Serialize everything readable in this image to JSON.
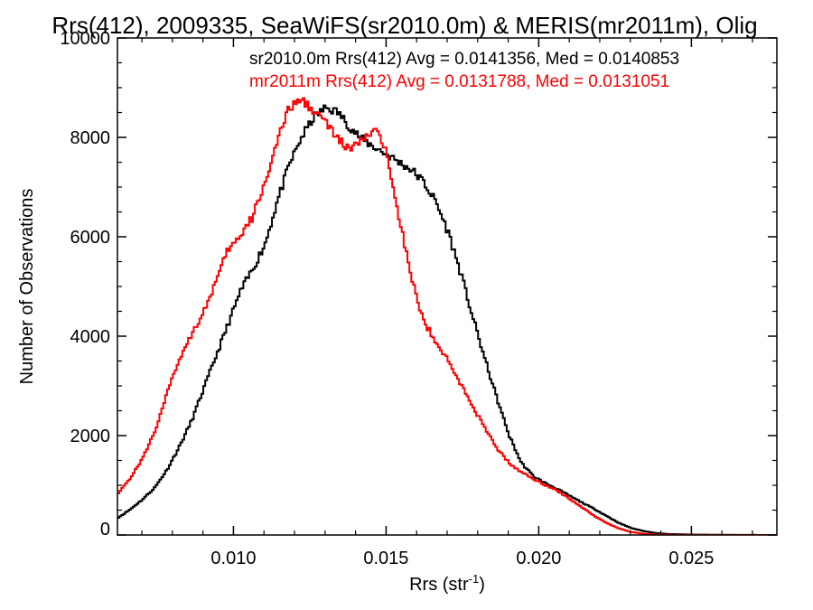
{
  "chart_data": {
    "type": "line",
    "title": "Rrs(412), 2009335, SeaWiFS(sr2010.0m) & MERIS(mr2011m), Olig",
    "xlabel": "Rrs (str",
    "xlabel_sup": "-1",
    "xlabel_close": ")",
    "ylabel": "Number of Observations",
    "xlim": [
      0.0062,
      0.0278
    ],
    "ylim": [
      0,
      10000
    ],
    "xticks": [
      0.01,
      0.015,
      0.02,
      0.025
    ],
    "xtick_labels": [
      "0.010",
      "0.015",
      "0.020",
      "0.025"
    ],
    "yticks": [
      0,
      2000,
      4000,
      6000,
      8000,
      10000
    ],
    "ytick_labels": [
      "0",
      "2000",
      "4000",
      "6000",
      "8000",
      "10000"
    ],
    "grid": false,
    "step": true,
    "series": [
      {
        "name": "sr2010.0m Rrs(412) Avg = 0.0141356, Med = 0.0140853",
        "color": "#000000",
        "points": [
          [
            0.0062,
            350
          ],
          [
            0.0066,
            520
          ],
          [
            0.007,
            720
          ],
          [
            0.0074,
            960
          ],
          [
            0.0078,
            1320
          ],
          [
            0.0082,
            1780
          ],
          [
            0.0086,
            2300
          ],
          [
            0.009,
            2950
          ],
          [
            0.0094,
            3600
          ],
          [
            0.0098,
            4250
          ],
          [
            0.0102,
            4900
          ],
          [
            0.0106,
            5350
          ],
          [
            0.011,
            5850
          ],
          [
            0.0114,
            6700
          ],
          [
            0.0118,
            7450
          ],
          [
            0.0122,
            8000
          ],
          [
            0.0126,
            8400
          ],
          [
            0.013,
            8600
          ],
          [
            0.0134,
            8500
          ],
          [
            0.0138,
            8200
          ],
          [
            0.0142,
            7950
          ],
          [
            0.0146,
            7800
          ],
          [
            0.015,
            7650
          ],
          [
            0.0154,
            7500
          ],
          [
            0.0158,
            7350
          ],
          [
            0.0162,
            7100
          ],
          [
            0.0166,
            6700
          ],
          [
            0.017,
            6100
          ],
          [
            0.0174,
            5300
          ],
          [
            0.0178,
            4400
          ],
          [
            0.0182,
            3550
          ],
          [
            0.0186,
            2750
          ],
          [
            0.019,
            2000
          ],
          [
            0.0194,
            1450
          ],
          [
            0.0198,
            1180
          ],
          [
            0.0202,
            1040
          ],
          [
            0.0206,
            920
          ],
          [
            0.021,
            780
          ],
          [
            0.0214,
            650
          ],
          [
            0.0218,
            520
          ],
          [
            0.0222,
            380
          ],
          [
            0.0226,
            240
          ],
          [
            0.023,
            140
          ],
          [
            0.0234,
            80
          ],
          [
            0.0238,
            40
          ],
          [
            0.0242,
            20
          ],
          [
            0.025,
            8
          ],
          [
            0.026,
            3
          ],
          [
            0.0278,
            0
          ]
        ]
      },
      {
        "name": "mr2011m Rrs(412) Avg = 0.0131788, Med = 0.0131051",
        "color": "#ff0000",
        "points": [
          [
            0.0062,
            850
          ],
          [
            0.0066,
            1150
          ],
          [
            0.007,
            1550
          ],
          [
            0.0074,
            2100
          ],
          [
            0.0078,
            2850
          ],
          [
            0.0082,
            3550
          ],
          [
            0.0086,
            4050
          ],
          [
            0.009,
            4500
          ],
          [
            0.0094,
            5100
          ],
          [
            0.0098,
            5750
          ],
          [
            0.0102,
            6000
          ],
          [
            0.0106,
            6400
          ],
          [
            0.011,
            7100
          ],
          [
            0.0114,
            7900
          ],
          [
            0.0118,
            8600
          ],
          [
            0.0122,
            8750
          ],
          [
            0.0126,
            8550
          ],
          [
            0.013,
            8300
          ],
          [
            0.0134,
            7950
          ],
          [
            0.0138,
            7750
          ],
          [
            0.0142,
            7950
          ],
          [
            0.0146,
            8150
          ],
          [
            0.015,
            7700
          ],
          [
            0.0154,
            6400
          ],
          [
            0.0158,
            5150
          ],
          [
            0.0162,
            4300
          ],
          [
            0.0166,
            3900
          ],
          [
            0.017,
            3500
          ],
          [
            0.0174,
            3050
          ],
          [
            0.0178,
            2600
          ],
          [
            0.0182,
            2150
          ],
          [
            0.0186,
            1750
          ],
          [
            0.019,
            1450
          ],
          [
            0.0194,
            1260
          ],
          [
            0.0198,
            1130
          ],
          [
            0.0202,
            1000
          ],
          [
            0.0206,
            880
          ],
          [
            0.021,
            720
          ],
          [
            0.0214,
            550
          ],
          [
            0.0218,
            380
          ],
          [
            0.0222,
            240
          ],
          [
            0.0226,
            130
          ],
          [
            0.023,
            60
          ],
          [
            0.0234,
            25
          ],
          [
            0.0238,
            10
          ],
          [
            0.0245,
            3
          ],
          [
            0.0278,
            0
          ]
        ]
      }
    ]
  }
}
